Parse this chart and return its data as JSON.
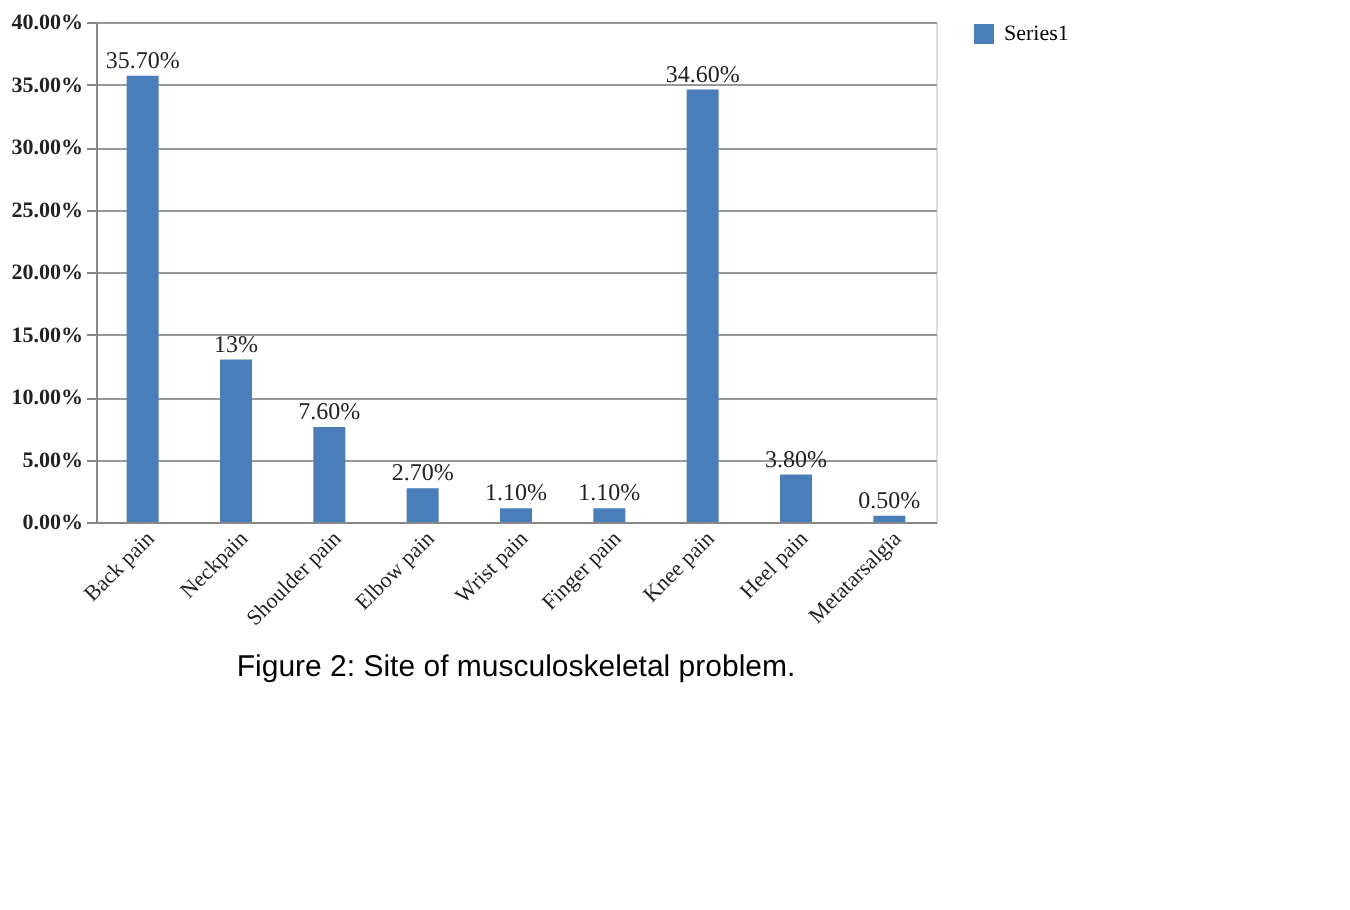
{
  "chart_data": {
    "type": "bar",
    "categories": [
      "Back pain",
      "Neckpain",
      "Shoulder pain",
      "Elbow pain",
      "Wrist pain",
      "Finger pain",
      "Knee pain",
      "Heel pain",
      "Metatarsalgia"
    ],
    "series": [
      {
        "name": "Series1",
        "color": "#4a7ebb",
        "values": [
          35.7,
          13,
          7.6,
          2.7,
          1.1,
          1.1,
          34.6,
          3.8,
          0.5
        ],
        "value_labels": [
          "35.70%",
          "13%",
          "7.60%",
          "2.70%",
          "1.10%",
          "1.10%",
          "34.60%",
          "3.80%",
          "0.50%"
        ]
      }
    ],
    "ylim": [
      0,
      40
    ],
    "yticks": [
      {
        "value": 0,
        "label": "0.00%"
      },
      {
        "value": 5,
        "label": "5.00%"
      },
      {
        "value": 10,
        "label": "10.00%"
      },
      {
        "value": 15,
        "label": "15.00%"
      },
      {
        "value": 20,
        "label": "20.00%"
      },
      {
        "value": 25,
        "label": "25.00%"
      },
      {
        "value": 30,
        "label": "30.00%"
      },
      {
        "value": 35,
        "label": "35.00%"
      },
      {
        "value": 40,
        "label": "40.00%"
      }
    ],
    "grid": "y",
    "legend": "right",
    "annotations": [
      "Figure 2: Site of musculoskeletal problem."
    ]
  }
}
